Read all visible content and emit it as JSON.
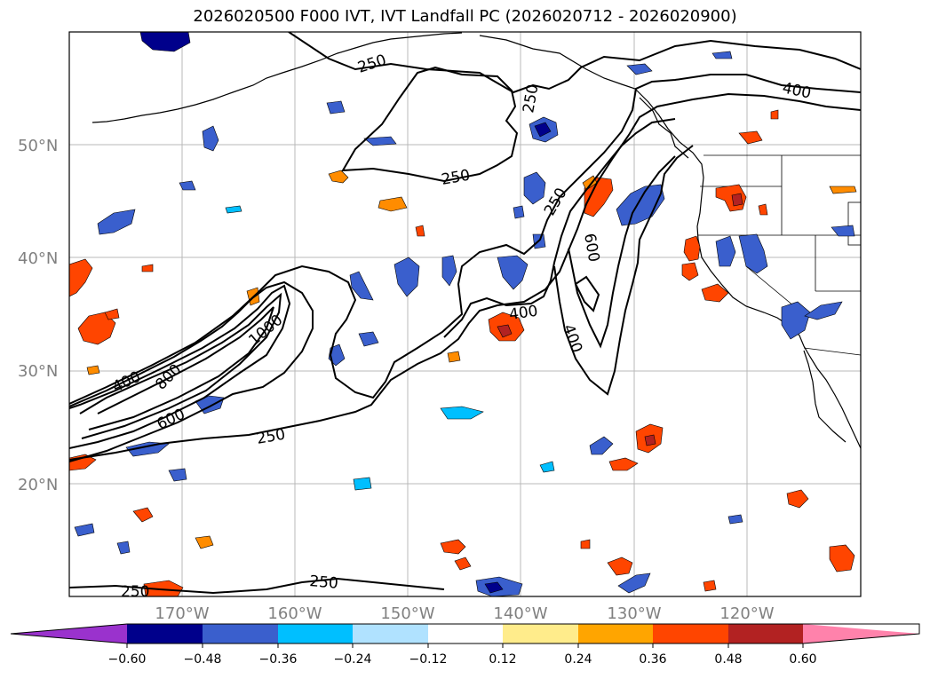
{
  "title": "2026020500 F000 IVT, IVT Landfall PC (2026020712 - 2026020900)",
  "map": {
    "lat_labels": [
      "50°N",
      "40°N",
      "30°N",
      "20°N"
    ],
    "lon_labels": [
      "170°W",
      "160°W",
      "150°W",
      "140°W",
      "130°W",
      "120°W"
    ]
  },
  "contour_labels": [
    {
      "text": "250",
      "name": "contour-label-250-nw"
    },
    {
      "text": "250",
      "name": "contour-label-250-gulf"
    },
    {
      "text": "250",
      "name": "contour-label-250-north"
    },
    {
      "text": "250",
      "name": "contour-label-250-mid"
    },
    {
      "text": "250",
      "name": "contour-label-250-south"
    },
    {
      "text": "250",
      "name": "contour-label-250-bottom"
    },
    {
      "text": "250",
      "name": "contour-label-250-bottom-left"
    },
    {
      "text": "400",
      "name": "contour-label-400-canada"
    },
    {
      "text": "400",
      "name": "contour-label-400-mid"
    },
    {
      "text": "400",
      "name": "contour-label-400-ar"
    },
    {
      "text": "400",
      "name": "contour-label-400-west"
    },
    {
      "text": "600",
      "name": "contour-label-600-ar"
    },
    {
      "text": "600",
      "name": "contour-label-600-west"
    },
    {
      "text": "800",
      "name": "contour-label-800"
    },
    {
      "text": "1000",
      "name": "contour-label-1000"
    }
  ],
  "colorbar": {
    "ticks": [
      "−0.60",
      "−0.48",
      "−0.36",
      "−0.24",
      "−0.12",
      "0.12",
      "0.24",
      "0.36",
      "0.48",
      "0.60"
    ],
    "colors": [
      "#9a32cd",
      "#00008b",
      "#3a5fcd",
      "#00bfff",
      "#b0e2ff",
      "#ffffff",
      "#ffec8b",
      "#ffa500",
      "#ff4500",
      "#b22222",
      "#ff82ab"
    ]
  }
}
